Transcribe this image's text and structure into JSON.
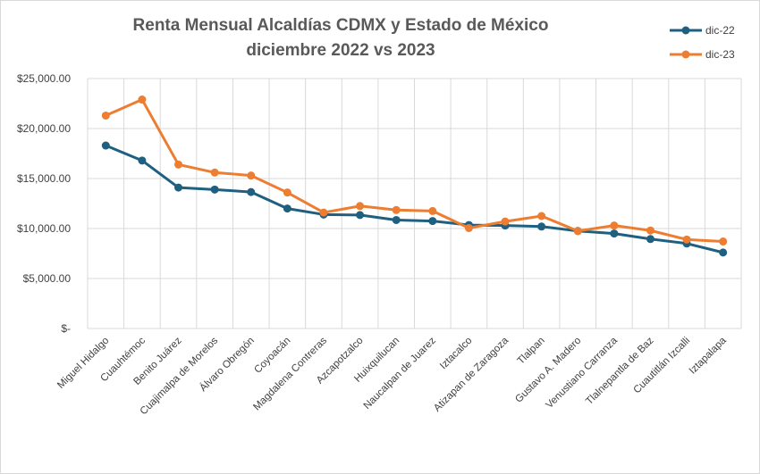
{
  "chart_data": {
    "type": "line",
    "title": [
      "Renta Mensual Alcaldías CDMX y Estado de México",
      "diciembre 2022 vs 2023"
    ],
    "categories": [
      "Miguel Hidalgo",
      "Cuauhtémoc",
      "Benito Juárez",
      "Cuajimalpa de Morelos",
      "Álvaro Obregón",
      "Coyoacán",
      "Magdalena Contreras",
      "Azcapotzalco",
      "Huixquilucan",
      "Naucalpan de Juarez",
      "Iztacalco",
      "Atizapan de Zaragoza",
      "Tlalpan",
      "Gustavo A. Madero",
      "Venustiano Carranza",
      "Tlalnepantla de Baz",
      "Cuautitlán Izcalli",
      "Iztapalapa"
    ],
    "series": [
      {
        "name": "dic-22",
        "color": "#1f5f80",
        "values": [
          18300,
          16800,
          14100,
          13900,
          13650,
          12000,
          11400,
          11350,
          10850,
          10750,
          10350,
          10300,
          10200,
          9750,
          9500,
          8950,
          8500,
          7600
        ]
      },
      {
        "name": "dic-23",
        "color": "#ed7d31",
        "values": [
          21300,
          22900,
          16400,
          15600,
          15300,
          13600,
          11600,
          12250,
          11850,
          11750,
          10050,
          10700,
          11250,
          9750,
          10300,
          9800,
          8900,
          8700
        ]
      }
    ],
    "yticks": [
      "$-",
      "$5,000.00",
      "$10,000.00",
      "$15,000.00",
      "$20,000.00",
      "$25,000.00"
    ],
    "ylim": [
      0,
      25000
    ],
    "grid": true,
    "legend_position": "top-right"
  }
}
